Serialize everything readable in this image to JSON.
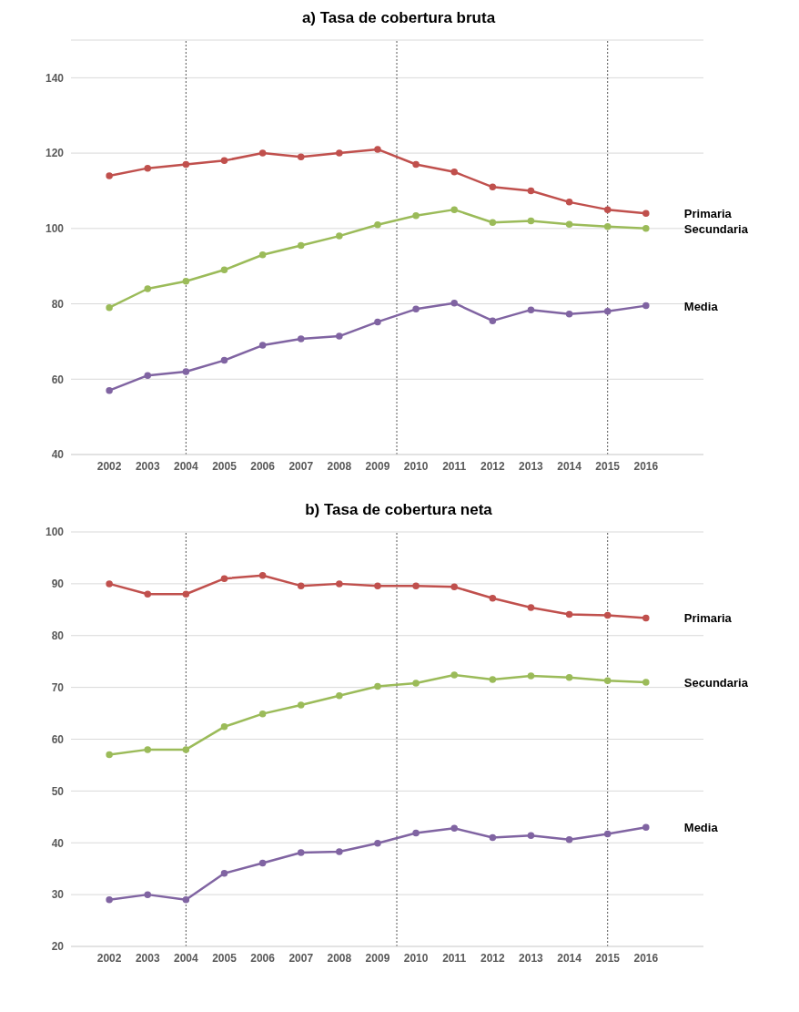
{
  "chart_data": [
    {
      "type": "line",
      "title": "a) Tasa de cobertura bruta",
      "x": [
        2002,
        2003,
        2004,
        2005,
        2006,
        2007,
        2008,
        2009,
        2010,
        2011,
        2012,
        2013,
        2014,
        2015,
        2016
      ],
      "xlim": [
        2001,
        2017.5
      ],
      "xticks": [
        2002,
        2003,
        2004,
        2005,
        2006,
        2007,
        2008,
        2009,
        2010,
        2011,
        2012,
        2013,
        2014,
        2015,
        2016
      ],
      "ylim": [
        40,
        150
      ],
      "yticks": [
        40,
        60,
        80,
        100,
        120,
        140
      ],
      "grid": "y",
      "legend": false,
      "marker": "circle",
      "line_style": "solid",
      "series": [
        {
          "name": "Primaria",
          "color": "#c0504d",
          "values": [
            114,
            116,
            117,
            118,
            120,
            119,
            120,
            121,
            117,
            115,
            111,
            110,
            107,
            105,
            104
          ]
        },
        {
          "name": "Secundaria",
          "color": "#9bbb59",
          "values": [
            79,
            84,
            86,
            89,
            93,
            95.5,
            98,
            101,
            103.4,
            105,
            101.6,
            102,
            101.1,
            100.5,
            100
          ]
        },
        {
          "name": "Media",
          "color": "#8064a2",
          "values": [
            57,
            61,
            62,
            65,
            69,
            70.7,
            71.4,
            75.2,
            78.6,
            80.2,
            75.5,
            78.4,
            77.3,
            78,
            79.5
          ]
        }
      ],
      "ref_lines": [
        {
          "axis": "x",
          "value": 2004,
          "color": "#555555",
          "line_style": "dotted"
        },
        {
          "axis": "x",
          "value": 2009.5,
          "color": "#555555",
          "line_style": "dotted"
        },
        {
          "axis": "x",
          "value": 2015,
          "color": "#555555",
          "line_style": "dotted"
        }
      ]
    },
    {
      "type": "line",
      "title": "b) Tasa de cobertura neta",
      "x": [
        2002,
        2003,
        2004,
        2005,
        2006,
        2007,
        2008,
        2009,
        2010,
        2011,
        2012,
        2013,
        2014,
        2015,
        2016
      ],
      "xlim": [
        2001,
        2017.5
      ],
      "xticks": [
        2002,
        2003,
        2004,
        2005,
        2006,
        2007,
        2008,
        2009,
        2010,
        2011,
        2012,
        2013,
        2014,
        2015,
        2016
      ],
      "ylim": [
        20,
        100
      ],
      "yticks": [
        20,
        30,
        40,
        50,
        60,
        70,
        80,
        90,
        100
      ],
      "grid": "y",
      "legend": false,
      "marker": "circle",
      "line_style": "solid",
      "series": [
        {
          "name": "Primaria",
          "color": "#c0504d",
          "values": [
            90,
            88,
            88,
            91,
            91.6,
            89.6,
            90,
            89.6,
            89.6,
            89.4,
            87.2,
            85.4,
            84.1,
            83.9,
            83.4
          ]
        },
        {
          "name": "Secundaria",
          "color": "#9bbb59",
          "values": [
            57,
            58,
            58,
            62.4,
            64.9,
            66.6,
            68.4,
            70.2,
            70.8,
            72.4,
            71.5,
            72.2,
            71.9,
            71.3,
            71
          ]
        },
        {
          "name": "Media",
          "color": "#8064a2",
          "values": [
            29,
            30,
            29,
            34.1,
            36.1,
            38.1,
            38.3,
            39.9,
            41.9,
            42.8,
            41,
            41.4,
            40.6,
            41.7,
            43
          ]
        }
      ],
      "ref_lines": [
        {
          "axis": "x",
          "value": 2004,
          "color": "#555555",
          "line_style": "dotted"
        },
        {
          "axis": "x",
          "value": 2009.5,
          "color": "#555555",
          "line_style": "dotted"
        },
        {
          "axis": "x",
          "value": 2015,
          "color": "#555555",
          "line_style": "dotted"
        }
      ]
    }
  ]
}
